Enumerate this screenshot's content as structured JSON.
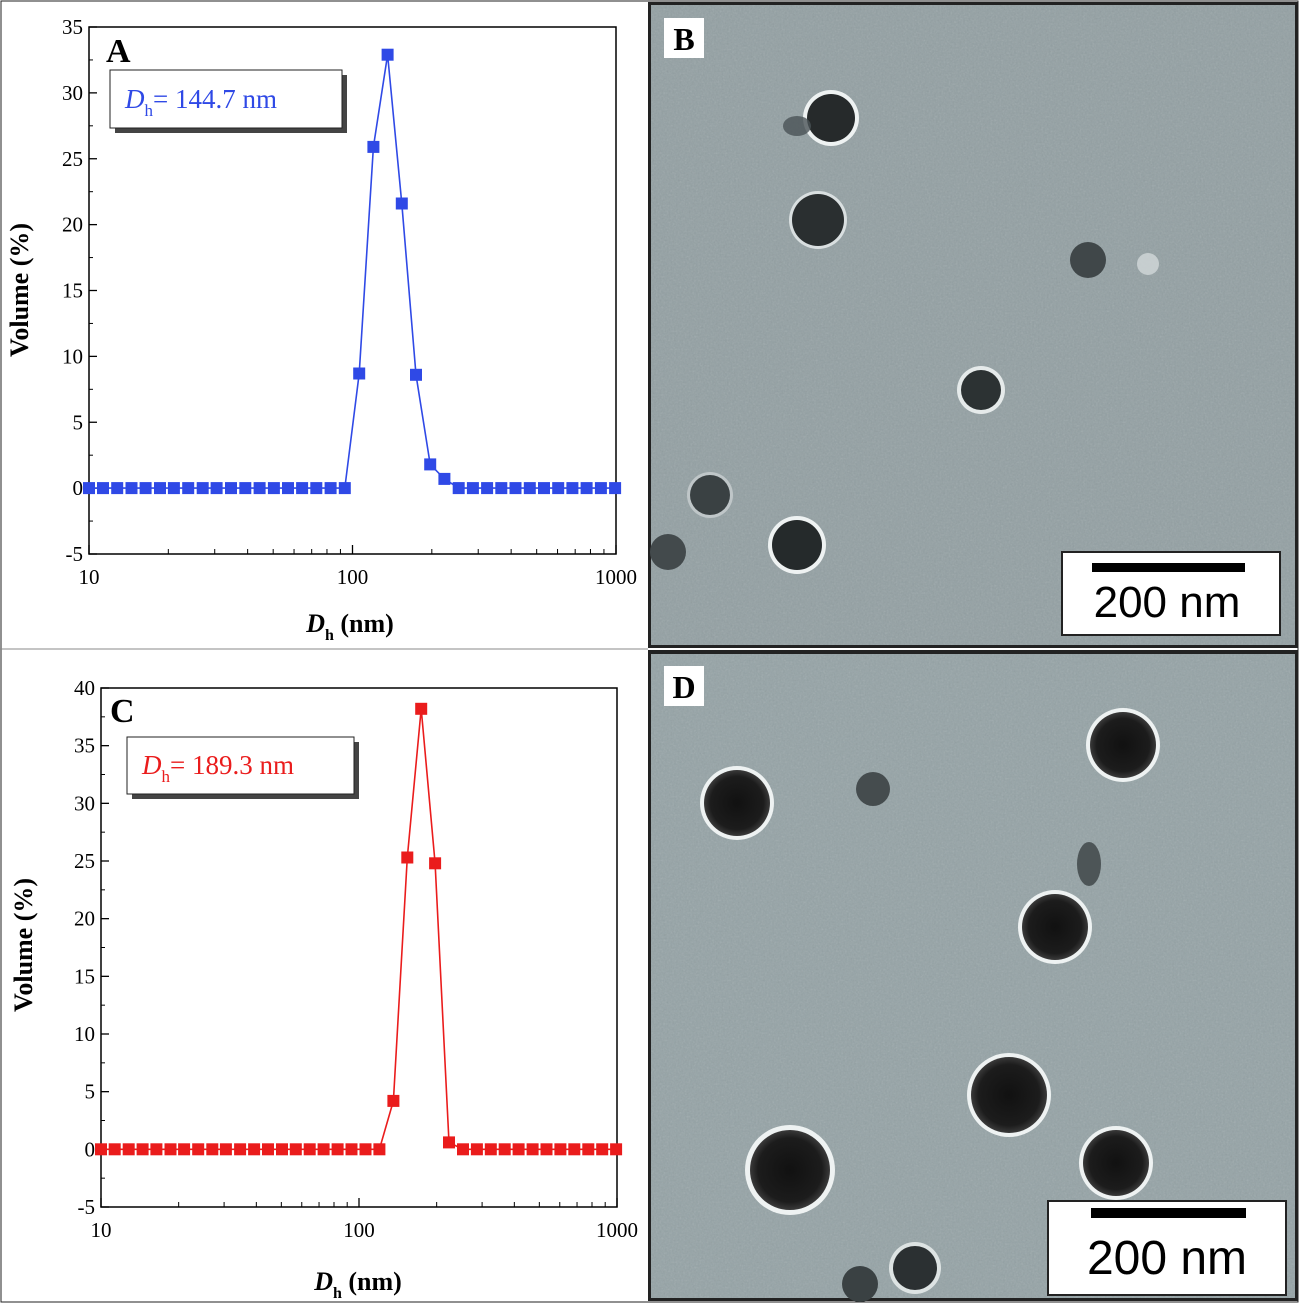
{
  "panels": {
    "A": {
      "letter": "A",
      "annotation": {
        "symbol": "D",
        "subscript": "h",
        "text": "= 144.7 nm"
      },
      "color": "#2f49e6"
    },
    "B": {
      "letter": "B",
      "scale_bar_label": "200 nm"
    },
    "C": {
      "letter": "C",
      "annotation": {
        "symbol": "D",
        "subscript": "h",
        "text": "= 189.3 nm"
      },
      "color": "#ea1c1c"
    },
    "D": {
      "letter": "D",
      "scale_bar_label": "200 nm"
    }
  },
  "axis_text": {
    "ylabel": "Volume (%)",
    "xlabel_symbol": "D",
    "xlabel_subscript": "h",
    "xlabel_unit": " (nm)"
  },
  "chart_data": [
    {
      "panel": "A",
      "type": "line",
      "x_scale": "log",
      "xlim": [
        10,
        1000
      ],
      "ylim": [
        -5,
        35
      ],
      "x_ticks": [
        10,
        100,
        1000
      ],
      "y_ticks": [
        -5,
        0,
        5,
        10,
        15,
        20,
        25,
        30,
        35
      ],
      "x_tick_labels": [
        "10",
        "100",
        "1000"
      ],
      "y_tick_labels": [
        "-5",
        "0",
        "5",
        "10",
        "15",
        "20",
        "25",
        "30",
        "35"
      ],
      "xlabel": "Dh (nm)",
      "ylabel": "Volume (%)",
      "series": [
        {
          "color": "#2f49e6",
          "marker": "square",
          "x": [
            10.0,
            11.3,
            12.8,
            14.5,
            16.4,
            18.6,
            21.0,
            23.8,
            27.0,
            30.5,
            34.6,
            39.2,
            44.4,
            50.3,
            56.9,
            64.4,
            72.9,
            82.6,
            93.5,
            106.0,
            120.0,
            135.9,
            153.9,
            174.2,
            197.2,
            223.3,
            252.9,
            286.3,
            324.2,
            367.0,
            415.7,
            470.7,
            533.0,
            603.5,
            683.3,
            773.7,
            876.1,
            992.0
          ],
          "y": [
            0,
            0,
            0,
            0,
            0,
            0,
            0,
            0,
            0,
            0,
            0,
            0,
            0,
            0,
            0,
            0,
            0,
            0,
            0,
            8.7,
            25.9,
            32.9,
            21.6,
            8.6,
            1.8,
            0.7,
            0,
            0,
            0,
            0,
            0,
            0,
            0,
            0,
            0,
            0,
            0,
            0
          ]
        }
      ]
    },
    {
      "panel": "C",
      "type": "line",
      "x_scale": "log",
      "xlim": [
        10,
        1000
      ],
      "ylim": [
        -5,
        40
      ],
      "x_ticks": [
        10,
        100,
        1000
      ],
      "y_ticks": [
        -5,
        0,
        5,
        10,
        15,
        20,
        25,
        30,
        35,
        40
      ],
      "x_tick_labels": [
        "10",
        "100",
        "1000"
      ],
      "y_tick_labels": [
        "-5",
        "0",
        "5",
        "10",
        "15",
        "20",
        "25",
        "30",
        "35",
        "40"
      ],
      "xlabel": "Dh (nm)",
      "ylabel": "Volume (%)",
      "series": [
        {
          "color": "#ea1c1c",
          "marker": "square",
          "x": [
            10.0,
            11.3,
            12.8,
            14.5,
            16.4,
            18.6,
            21.0,
            23.8,
            27.0,
            30.5,
            34.6,
            39.2,
            44.4,
            50.3,
            56.9,
            64.4,
            72.9,
            82.6,
            93.5,
            106.0,
            120.0,
            135.9,
            153.9,
            174.2,
            197.2,
            223.3,
            252.9,
            286.3,
            324.2,
            367.0,
            415.7,
            470.7,
            533.0,
            603.5,
            683.3,
            773.7,
            876.1,
            992.0
          ],
          "y": [
            0,
            0,
            0,
            0,
            0,
            0,
            0,
            0,
            0,
            0,
            0,
            0,
            0,
            0,
            0,
            0,
            0,
            0,
            0,
            0,
            0,
            4.2,
            25.3,
            38.2,
            24.8,
            0.6,
            0,
            0,
            0,
            0,
            0,
            0,
            0,
            0,
            0,
            0,
            0,
            0
          ]
        }
      ]
    }
  ]
}
